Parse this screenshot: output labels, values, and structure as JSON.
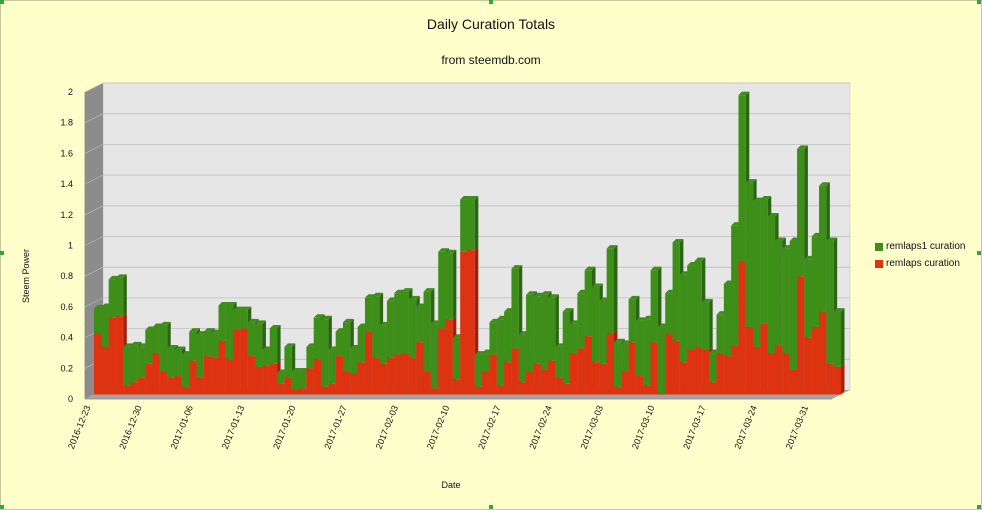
{
  "chart_data": {
    "type": "bar",
    "stacked": true,
    "title": "Daily Curation Totals",
    "subtitle": "from steemdb.com",
    "xlabel": "Date",
    "ylabel": "Steem Power",
    "ylim": [
      0,
      2
    ],
    "yticks": [
      "0",
      "0.2",
      "0.4",
      "0.6",
      "0.8",
      "1",
      "1.2",
      "1.4",
      "1.6",
      "1.8",
      "2"
    ],
    "xtick_labels": [
      "2016-12-23",
      "2016-12-30",
      "2017-01-06",
      "2017-01-13",
      "2017-01-20",
      "2017-01-27",
      "2017-02-03",
      "2017-02-10",
      "2017-02-17",
      "2017-02-24",
      "2017-03-03",
      "2017-03-10",
      "2017-03-17",
      "2017-03-24",
      "2017-03-31"
    ],
    "grid": true,
    "legend_position": "right",
    "series": [
      {
        "name": "remlaps curation",
        "color": "#dd3311",
        "values": [
          0.4,
          0.31,
          0.5,
          0.51,
          0.06,
          0.08,
          0.11,
          0.2,
          0.27,
          0.15,
          0.11,
          0.12,
          0.05,
          0.22,
          0.11,
          0.25,
          0.24,
          0.35,
          0.23,
          0.42,
          0.43,
          0.25,
          0.18,
          0.19,
          0.2,
          0.07,
          0.11,
          0.03,
          0.04,
          0.17,
          0.23,
          0.05,
          0.07,
          0.25,
          0.15,
          0.14,
          0.21,
          0.41,
          0.24,
          0.2,
          0.24,
          0.26,
          0.27,
          0.24,
          0.34,
          0.15,
          0.04,
          0.43,
          0.49,
          0.1,
          0.93,
          0.94,
          0.05,
          0.15,
          0.26,
          0.06,
          0.21,
          0.3,
          0.08,
          0.15,
          0.2,
          0.16,
          0.22,
          0.11,
          0.07,
          0.27,
          0.3,
          0.38,
          0.21,
          0.2,
          0.4,
          0.05,
          0.15,
          0.34,
          0.12,
          0.06,
          0.34,
          0.01,
          0.4,
          0.35,
          0.21,
          0.29,
          0.31,
          0.29,
          0.08,
          0.27,
          0.25,
          0.32,
          0.87,
          0.44,
          0.31,
          0.46,
          0.27,
          0.32,
          0.27,
          0.16,
          0.77,
          0.37,
          0.44,
          0.54,
          0.2,
          0.18
        ]
      },
      {
        "name": "remlaps1 curation",
        "color": "#3e8f1a",
        "values": [
          0.16,
          0.26,
          0.25,
          0.25,
          0.25,
          0.24,
          0.2,
          0.22,
          0.17,
          0.3,
          0.19,
          0.17,
          0.21,
          0.19,
          0.28,
          0.16,
          0.16,
          0.23,
          0.35,
          0.13,
          0.12,
          0.22,
          0.28,
          0.1,
          0.23,
          0.07,
          0.2,
          0.12,
          0.11,
          0.14,
          0.27,
          0.44,
          0.22,
          0.16,
          0.32,
          0.16,
          0.23,
          0.22,
          0.4,
          0.25,
          0.37,
          0.4,
          0.4,
          0.38,
          0.23,
          0.52,
          0.42,
          0.5,
          0.43,
          0.27,
          0.34,
          0.33,
          0.21,
          0.12,
          0.21,
          0.43,
          0.33,
          0.52,
          0.31,
          0.5,
          0.44,
          0.49,
          0.41,
          0.2,
          0.47,
          0.19,
          0.36,
          0.43,
          0.49,
          0.41,
          0.55,
          0.29,
          0.18,
          0.28,
          0.36,
          0.43,
          0.47,
          0.43,
          0.26,
          0.64,
          0.57,
          0.55,
          0.56,
          0.31,
          0.19,
          0.25,
          0.47,
          0.78,
          1.08,
          0.94,
          0.95,
          0.81,
          0.89,
          0.68,
          0.68,
          0.84,
          0.83,
          0.51,
          0.59,
          0.82,
          0.8,
          0.36
        ]
      }
    ]
  }
}
